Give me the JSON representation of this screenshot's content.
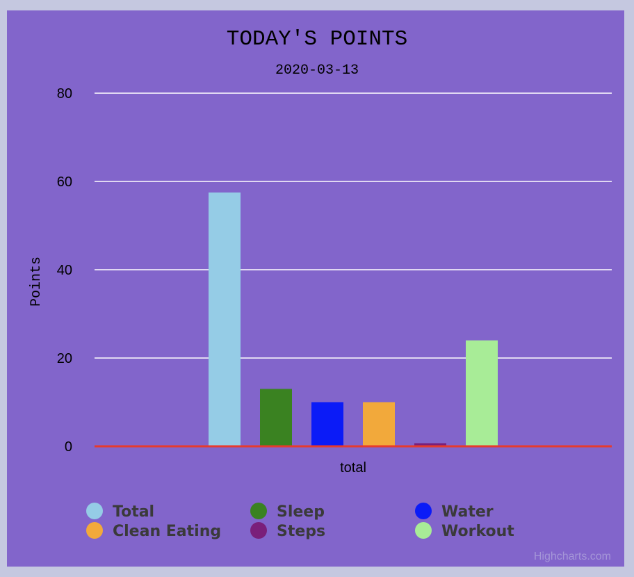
{
  "colors": {
    "background": "#8265cb",
    "page": "#c5c8e0",
    "gridline": "#ffffff",
    "baseline": "#e63a2e",
    "text": "#000000",
    "legend_text": "#3a3a3a",
    "credit": "#a596d8"
  },
  "chart_data": {
    "type": "bar",
    "title": "TODAY'S POINTS",
    "subtitle": "2020-03-13",
    "categories": [
      "total"
    ],
    "ylabel": "Points",
    "xlabel": "",
    "ylim": [
      0,
      80
    ],
    "yticks": [
      0,
      20,
      40,
      60,
      80
    ],
    "grid": true,
    "legend_position": "bottom",
    "series": [
      {
        "name": "Total",
        "values": [
          57.5
        ],
        "color": "#95cce6"
      },
      {
        "name": "Sleep",
        "values": [
          13
        ],
        "color": "#3a8221"
      },
      {
        "name": "Water",
        "values": [
          10
        ],
        "color": "#0b1bf7"
      },
      {
        "name": "Clean Eating",
        "values": [
          10
        ],
        "color": "#f2a93b"
      },
      {
        "name": "Steps",
        "values": [
          0.7
        ],
        "color": "#7a1f7a"
      },
      {
        "name": "Workout",
        "values": [
          24
        ],
        "color": "#a8ec97"
      }
    ]
  },
  "credits": "Highcharts.com"
}
